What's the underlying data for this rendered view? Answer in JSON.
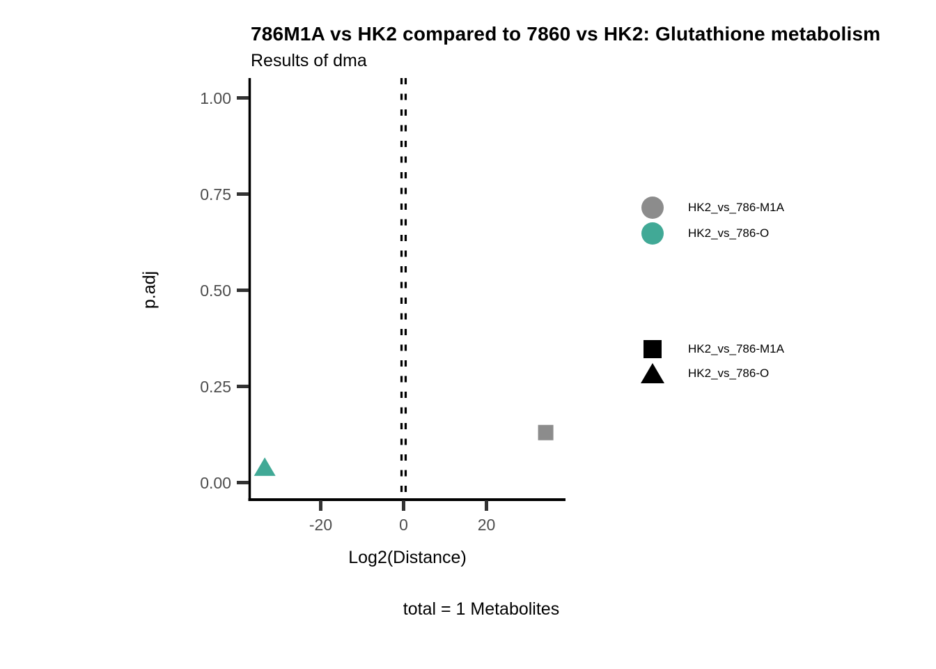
{
  "chart_data": {
    "type": "scatter",
    "title": "786M1A vs HK2 compared to 7860 vs HK2: Glutathione metabolism",
    "subtitle": "Results of dma",
    "caption": "total = 1 Metabolites",
    "xlabel": "Log2(Distance)",
    "ylabel": "p.adj",
    "xlim": [
      -37.5,
      39
    ],
    "ylim": [
      -0.04,
      1.05
    ],
    "grid": false,
    "legend_position": "right",
    "x_ticks": [
      {
        "value": -20,
        "label": "-20"
      },
      {
        "value": 0,
        "label": "0"
      },
      {
        "value": 20,
        "label": "20"
      }
    ],
    "y_ticks": [
      {
        "value": 1.0,
        "label": "1.00"
      },
      {
        "value": 0.75,
        "label": "0.75"
      },
      {
        "value": 0.5,
        "label": "0.50"
      },
      {
        "value": 0.25,
        "label": "0.25"
      },
      {
        "value": 0.0,
        "label": "0.00"
      }
    ],
    "vlines": [
      {
        "x": -0.5,
        "style": "dashed",
        "color": "#000000"
      },
      {
        "x": 0.5,
        "style": "dashed",
        "color": "#000000"
      }
    ],
    "series": [
      {
        "name": "HK2_vs_786-M1A",
        "shape": "square",
        "color": "#8c8c8c",
        "points": [
          {
            "x": 34.3,
            "p_adj": 0.13
          }
        ]
      },
      {
        "name": "HK2_vs_786-O",
        "shape": "triangle",
        "color": "#41a996",
        "points": [
          {
            "x": -33.5,
            "p_adj": 0.04
          }
        ]
      }
    ],
    "legends": {
      "color": {
        "items": [
          {
            "label": "HK2_vs_786-M1A",
            "color": "#8c8c8c"
          },
          {
            "label": "HK2_vs_786-O",
            "color": "#41a996"
          }
        ]
      },
      "shape": {
        "items": [
          {
            "label": "HK2_vs_786-M1A",
            "shape": "square",
            "color": "#000000"
          },
          {
            "label": "HK2_vs_786-O",
            "shape": "triangle",
            "color": "#000000"
          }
        ]
      }
    },
    "style_colors": {
      "axis_line": "#000000",
      "tick_mark": "#333333",
      "tick_label": "#4d4d4d"
    }
  }
}
